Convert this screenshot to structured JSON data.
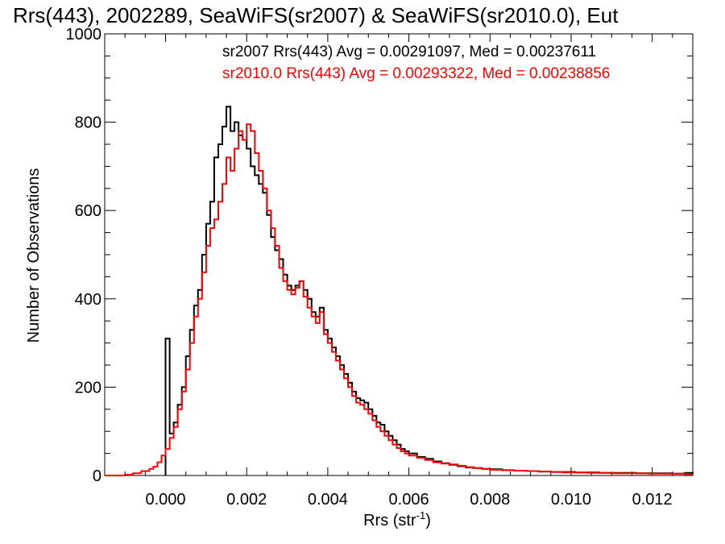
{
  "chart_data": {
    "type": "line",
    "title": "Rrs(443), 2002289, SeaWiFS(sr2007) & SeaWiFS(sr2010.0), Eut",
    "xlabel_main": "Rrs (str",
    "xlabel_sup": "-1",
    "xlabel_close": ")",
    "ylabel": "Number of Observations",
    "xlim": [
      -0.0015,
      0.013
    ],
    "ylim": [
      0,
      1000
    ],
    "x_ticks": [
      0.0,
      0.002,
      0.004,
      0.006,
      0.008,
      0.01,
      0.012
    ],
    "x_tick_labels": [
      "0.000",
      "0.002",
      "0.004",
      "0.006",
      "0.008",
      "0.010",
      "0.012"
    ],
    "y_ticks": [
      0,
      200,
      400,
      600,
      800,
      1000
    ],
    "y_tick_labels": [
      "0",
      "200",
      "400",
      "600",
      "800",
      "1000"
    ],
    "grid": false,
    "annotations": [
      {
        "text": "sr2007 Rrs(443) Avg = 0.00291097, Med = 0.00237611",
        "color": "#000000"
      },
      {
        "text": "sr2010.0 Rrs(443) Avg = 0.00293322, Med = 0.00238856",
        "color": "#ff0000"
      }
    ],
    "series": [
      {
        "color": "#000000",
        "points": [
          [
            0.0,
            310
          ],
          [
            0.0001,
            95
          ],
          [
            0.0002,
            120
          ],
          [
            0.0003,
            160
          ],
          [
            0.0004,
            200
          ],
          [
            0.0005,
            270
          ],
          [
            0.0006,
            330
          ],
          [
            0.0007,
            385
          ],
          [
            0.0008,
            420
          ],
          [
            0.0009,
            500
          ],
          [
            0.001,
            570
          ],
          [
            0.0011,
            620
          ],
          [
            0.0012,
            720
          ],
          [
            0.0013,
            750
          ],
          [
            0.0014,
            790
          ],
          [
            0.0015,
            835
          ],
          [
            0.0016,
            780
          ],
          [
            0.0017,
            800
          ],
          [
            0.0018,
            770
          ],
          [
            0.0019,
            760
          ],
          [
            0.002,
            740
          ],
          [
            0.0021,
            700
          ],
          [
            0.0022,
            680
          ],
          [
            0.0023,
            660
          ],
          [
            0.0024,
            640
          ],
          [
            0.0025,
            590
          ],
          [
            0.0026,
            540
          ],
          [
            0.0027,
            510
          ],
          [
            0.0028,
            490
          ],
          [
            0.0029,
            455
          ],
          [
            0.003,
            430
          ],
          [
            0.0031,
            420
          ],
          [
            0.0032,
            430
          ],
          [
            0.0033,
            440
          ],
          [
            0.0034,
            420
          ],
          [
            0.0035,
            400
          ],
          [
            0.0036,
            370
          ],
          [
            0.0037,
            360
          ],
          [
            0.0038,
            380
          ],
          [
            0.0039,
            330
          ],
          [
            0.004,
            310
          ],
          [
            0.0041,
            290
          ],
          [
            0.0042,
            270
          ],
          [
            0.0043,
            250
          ],
          [
            0.0044,
            230
          ],
          [
            0.0045,
            210
          ],
          [
            0.0046,
            190
          ],
          [
            0.0047,
            175
          ],
          [
            0.0048,
            170
          ],
          [
            0.0049,
            165
          ],
          [
            0.005,
            150
          ],
          [
            0.0051,
            135
          ],
          [
            0.0052,
            120
          ],
          [
            0.0053,
            115
          ],
          [
            0.0054,
            100
          ],
          [
            0.0055,
            90
          ],
          [
            0.0056,
            80
          ],
          [
            0.0057,
            70
          ],
          [
            0.0058,
            60
          ],
          [
            0.0059,
            55
          ],
          [
            0.006,
            50
          ],
          [
            0.0062,
            42
          ],
          [
            0.0064,
            38
          ],
          [
            0.0066,
            32
          ],
          [
            0.0068,
            28
          ],
          [
            0.007,
            24
          ],
          [
            0.0072,
            21
          ],
          [
            0.0074,
            18
          ],
          [
            0.0076,
            17
          ],
          [
            0.0078,
            15
          ],
          [
            0.008,
            14
          ],
          [
            0.0083,
            12
          ],
          [
            0.0086,
            11
          ],
          [
            0.0089,
            10
          ],
          [
            0.0092,
            9
          ],
          [
            0.0095,
            8
          ],
          [
            0.0098,
            8
          ],
          [
            0.0101,
            7
          ],
          [
            0.0104,
            7
          ],
          [
            0.0107,
            6
          ],
          [
            0.011,
            6
          ],
          [
            0.0113,
            6
          ],
          [
            0.0116,
            5
          ],
          [
            0.0119,
            5
          ],
          [
            0.0122,
            5
          ],
          [
            0.0125,
            4
          ],
          [
            0.0128,
            6
          ],
          [
            0.013,
            4
          ]
        ]
      },
      {
        "color": "#ff0000",
        "points": [
          [
            -0.0015,
            0
          ],
          [
            -0.001,
            2
          ],
          [
            -0.0008,
            5
          ],
          [
            -0.0006,
            10
          ],
          [
            -0.0004,
            15
          ],
          [
            -0.0003,
            20
          ],
          [
            -0.0002,
            30
          ],
          [
            -0.0001,
            45
          ],
          [
            0.0,
            60
          ],
          [
            0.0001,
            85
          ],
          [
            0.0002,
            110
          ],
          [
            0.0003,
            150
          ],
          [
            0.0004,
            190
          ],
          [
            0.0005,
            240
          ],
          [
            0.0006,
            300
          ],
          [
            0.0007,
            360
          ],
          [
            0.0008,
            400
          ],
          [
            0.0009,
            460
          ],
          [
            0.001,
            520
          ],
          [
            0.0011,
            560
          ],
          [
            0.0012,
            580
          ],
          [
            0.0013,
            620
          ],
          [
            0.0014,
            660
          ],
          [
            0.0015,
            720
          ],
          [
            0.0016,
            690
          ],
          [
            0.0017,
            740
          ],
          [
            0.0018,
            780
          ],
          [
            0.0019,
            760
          ],
          [
            0.002,
            795
          ],
          [
            0.0021,
            780
          ],
          [
            0.0022,
            730
          ],
          [
            0.0023,
            690
          ],
          [
            0.0024,
            650
          ],
          [
            0.0025,
            600
          ],
          [
            0.0026,
            560
          ],
          [
            0.0027,
            520
          ],
          [
            0.0028,
            470
          ],
          [
            0.0029,
            440
          ],
          [
            0.003,
            420
          ],
          [
            0.0031,
            410
          ],
          [
            0.0032,
            425
          ],
          [
            0.0033,
            440
          ],
          [
            0.0034,
            405
          ],
          [
            0.0035,
            380
          ],
          [
            0.0036,
            360
          ],
          [
            0.0037,
            345
          ],
          [
            0.0038,
            370
          ],
          [
            0.0039,
            320
          ],
          [
            0.004,
            300
          ],
          [
            0.0041,
            280
          ],
          [
            0.0042,
            260
          ],
          [
            0.0043,
            240
          ],
          [
            0.0044,
            220
          ],
          [
            0.0045,
            200
          ],
          [
            0.0046,
            180
          ],
          [
            0.0047,
            165
          ],
          [
            0.0048,
            160
          ],
          [
            0.0049,
            150
          ],
          [
            0.005,
            140
          ],
          [
            0.0051,
            125
          ],
          [
            0.0052,
            110
          ],
          [
            0.0053,
            100
          ],
          [
            0.0054,
            90
          ],
          [
            0.0055,
            80
          ],
          [
            0.0056,
            70
          ],
          [
            0.0057,
            62
          ],
          [
            0.0058,
            55
          ],
          [
            0.0059,
            50
          ],
          [
            0.006,
            45
          ],
          [
            0.0062,
            40
          ],
          [
            0.0064,
            35
          ],
          [
            0.0066,
            30
          ],
          [
            0.0068,
            27
          ],
          [
            0.007,
            25
          ],
          [
            0.0072,
            22
          ],
          [
            0.0074,
            19
          ],
          [
            0.0076,
            17
          ],
          [
            0.0078,
            15
          ],
          [
            0.008,
            13
          ],
          [
            0.0083,
            12
          ],
          [
            0.0086,
            11
          ],
          [
            0.0089,
            10
          ],
          [
            0.0092,
            9
          ],
          [
            0.0095,
            8
          ],
          [
            0.0098,
            7
          ],
          [
            0.0101,
            7
          ],
          [
            0.0104,
            6
          ],
          [
            0.0107,
            6
          ],
          [
            0.011,
            5
          ],
          [
            0.0113,
            5
          ],
          [
            0.0116,
            5
          ],
          [
            0.0119,
            4
          ],
          [
            0.0122,
            4
          ],
          [
            0.0125,
            4
          ],
          [
            0.0128,
            3
          ],
          [
            0.013,
            3
          ]
        ]
      }
    ]
  }
}
